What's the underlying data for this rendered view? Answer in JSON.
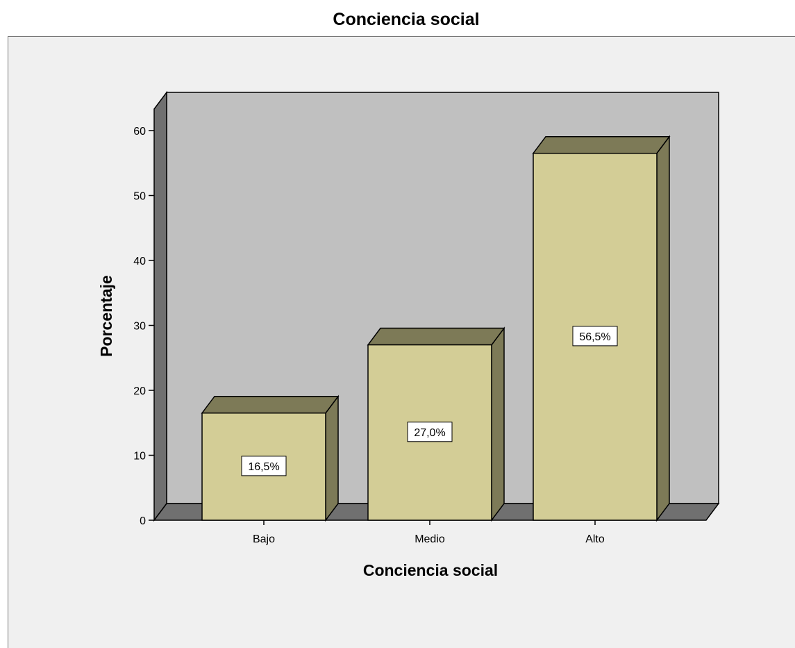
{
  "chart_data": {
    "type": "bar",
    "title": "Conciencia social",
    "xlabel": "Conciencia social",
    "ylabel": "Porcentaje",
    "categories": [
      "Bajo",
      "Medio",
      "Alto"
    ],
    "values": [
      16.5,
      27.0,
      56.5
    ],
    "data_labels": [
      "16,5%",
      "27,0%",
      "56,5%"
    ],
    "yticks": [
      0,
      10,
      20,
      30,
      40,
      50,
      60
    ],
    "ylim": [
      0,
      60
    ],
    "grid": false,
    "style": "3d",
    "colors": {
      "bar_front": "#d3cd96",
      "bar_side": "#7d7a57",
      "back_wall": "#c0c0c0",
      "side_wall": "#707070",
      "floor": "#707070",
      "frame_bg": "#f0f0f0"
    }
  }
}
